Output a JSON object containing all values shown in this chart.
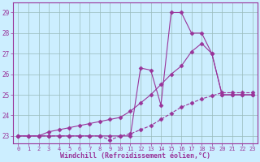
{
  "line1_x": [
    0,
    1,
    2,
    3,
    4,
    5,
    6,
    7,
    8,
    9,
    10,
    11,
    12,
    13,
    14,
    15,
    16,
    17,
    18,
    19,
    20,
    21,
    22,
    23
  ],
  "line1_y": [
    23,
    23,
    23,
    23,
    23,
    23,
    23,
    23,
    23,
    23,
    23,
    23,
    26.3,
    26.2,
    24.5,
    29,
    29,
    28,
    28,
    27,
    25,
    25,
    25,
    25
  ],
  "line2_x": [
    0,
    1,
    2,
    3,
    4,
    5,
    6,
    7,
    8,
    9,
    10,
    11,
    12,
    13,
    14,
    15,
    16,
    17,
    18,
    19,
    20,
    21,
    22,
    23
  ],
  "line2_y": [
    23,
    23,
    23,
    23.2,
    23.3,
    23.4,
    23.5,
    23.6,
    23.7,
    23.8,
    23.9,
    24.2,
    24.6,
    25.0,
    25.5,
    26.0,
    26.4,
    27.1,
    27.5,
    27.0,
    25,
    25,
    25,
    25
  ],
  "line3_x": [
    0,
    1,
    2,
    3,
    4,
    5,
    6,
    7,
    8,
    9,
    10,
    11,
    12,
    13,
    14,
    15,
    16,
    17,
    18,
    19,
    20,
    21,
    22,
    23
  ],
  "line3_y": [
    23,
    23,
    23,
    23,
    23,
    23,
    23,
    23,
    23,
    22.8,
    23.0,
    23.1,
    23.3,
    23.5,
    23.8,
    24.1,
    24.4,
    24.6,
    24.8,
    24.95,
    25.1,
    25.1,
    25.1,
    25.1
  ],
  "line_color": "#993399",
  "bg_color": "#cceeff",
  "grid_color": "#99bbbb",
  "xlabel": "Windchill (Refroidissement éolien,°C)",
  "ylim": [
    22.65,
    29.5
  ],
  "xlim": [
    -0.5,
    23.5
  ],
  "yticks": [
    23,
    24,
    25,
    26,
    27,
    28,
    29
  ],
  "xticks": [
    0,
    1,
    2,
    3,
    4,
    5,
    6,
    7,
    8,
    9,
    10,
    11,
    12,
    13,
    14,
    15,
    16,
    17,
    18,
    19,
    20,
    21,
    22,
    23
  ],
  "tick_color": "#993399",
  "label_color": "#993399",
  "spine_color": "#993399",
  "tick_fontsize": 5.0,
  "xlabel_fontsize": 6.0
}
